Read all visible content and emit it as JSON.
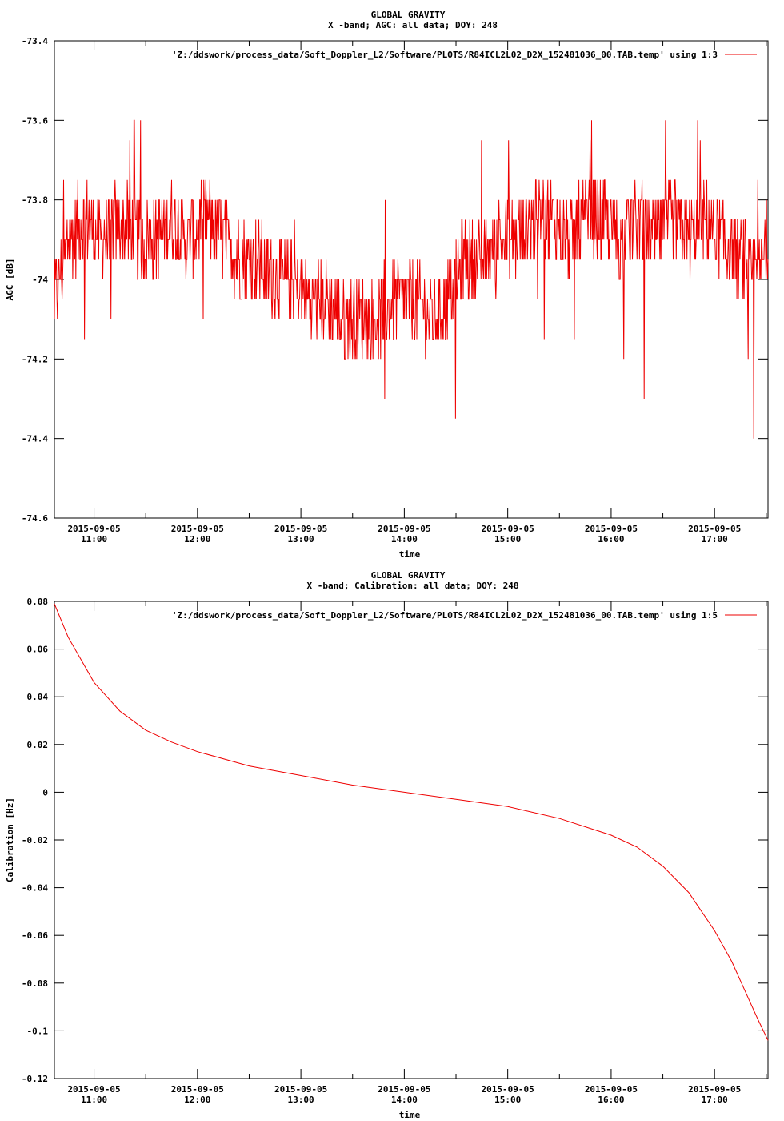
{
  "colors": {
    "series": "#ee0000",
    "axis": "#000000",
    "background": "#ffffff"
  },
  "chart_data": [
    {
      "type": "line",
      "title": "GLOBAL GRAVITY",
      "subtitle": "X -band; AGC: all data; DOY: 248",
      "xlabel": "time",
      "ylabel": "AGC [dB]",
      "xlim": [
        "2015-09-05 10:37",
        "2015-09-05 17:31"
      ],
      "ylim": [
        -74.6,
        -73.4
      ],
      "yticks": [
        -73.4,
        -73.6,
        -73.8,
        -74,
        -74.2,
        -74.4,
        -74.6
      ],
      "ytick_labels": [
        "-73.4",
        "-73.6",
        "-73.8",
        "-74",
        "-74.2",
        "-74.4",
        "-74.6"
      ],
      "xticks": [
        "2015-09-05 11:00",
        "2015-09-05 12:00",
        "2015-09-05 13:00",
        "2015-09-05 14:00",
        "2015-09-05 15:00",
        "2015-09-05 16:00",
        "2015-09-05 17:00"
      ],
      "xtick_labels": [
        [
          "2015-09-05",
          "11:00"
        ],
        [
          "2015-09-05",
          "12:00"
        ],
        [
          "2015-09-05",
          "13:00"
        ],
        [
          "2015-09-05",
          "14:00"
        ],
        [
          "2015-09-05",
          "15:00"
        ],
        [
          "2015-09-05",
          "16:00"
        ],
        [
          "2015-09-05",
          "17:00"
        ]
      ],
      "grid": false,
      "legend_position": "top-right",
      "series": [
        {
          "name": "'Z:/ddswork/process_data/Soft_Doppler_L2/Software/PLOTS/R84ICL2L02_D2X_152481036_00.TAB.temp' using 1:3",
          "x": [
            "2015-09-05 10:37",
            "2015-09-05 10:45",
            "2015-09-05 10:55",
            "2015-09-05 11:05",
            "2015-09-05 11:15",
            "2015-09-05 11:25",
            "2015-09-05 11:35",
            "2015-09-05 11:45",
            "2015-09-05 11:55",
            "2015-09-05 12:05",
            "2015-09-05 12:15",
            "2015-09-05 12:25",
            "2015-09-05 12:35",
            "2015-09-05 12:45",
            "2015-09-05 12:55",
            "2015-09-05 13:05",
            "2015-09-05 13:15",
            "2015-09-05 13:25",
            "2015-09-05 13:35",
            "2015-09-05 13:45",
            "2015-09-05 13:55",
            "2015-09-05 14:05",
            "2015-09-05 14:15",
            "2015-09-05 14:25",
            "2015-09-05 14:35",
            "2015-09-05 14:45",
            "2015-09-05 14:55",
            "2015-09-05 15:05",
            "2015-09-05 15:15",
            "2015-09-05 15:25",
            "2015-09-05 15:35",
            "2015-09-05 15:45",
            "2015-09-05 15:55",
            "2015-09-05 16:05",
            "2015-09-05 16:15",
            "2015-09-05 16:25",
            "2015-09-05 16:35",
            "2015-09-05 16:45",
            "2015-09-05 16:55",
            "2015-09-05 17:05",
            "2015-09-05 17:15",
            "2015-09-05 17:25",
            "2015-09-05 17:31"
          ],
          "y": [
            -74.05,
            -73.9,
            -73.85,
            -73.9,
            -73.85,
            -73.9,
            -73.9,
            -73.85,
            -73.9,
            -73.85,
            -73.9,
            -73.95,
            -73.95,
            -74.0,
            -74.0,
            -74.05,
            -74.05,
            -74.1,
            -74.1,
            -74.1,
            -74.05,
            -74.05,
            -74.1,
            -74.05,
            -73.95,
            -73.95,
            -73.9,
            -73.9,
            -73.85,
            -73.85,
            -73.9,
            -73.85,
            -73.85,
            -73.9,
            -73.85,
            -73.9,
            -73.85,
            -73.9,
            -73.85,
            -73.9,
            -73.95,
            -74.0,
            -73.9
          ]
        }
      ]
    },
    {
      "type": "line",
      "title": "GLOBAL GRAVITY",
      "subtitle": "X -band; Calibration: all data; DOY: 248",
      "xlabel": "time",
      "ylabel": "Calibration [Hz]",
      "xlim": [
        "2015-09-05 10:37",
        "2015-09-05 17:31"
      ],
      "ylim": [
        -0.12,
        0.08
      ],
      "yticks": [
        0.08,
        0.06,
        0.04,
        0.02,
        0,
        -0.02,
        -0.04,
        -0.06,
        -0.08,
        -0.1,
        -0.12
      ],
      "ytick_labels": [
        "0.08",
        "0.06",
        "0.04",
        "0.02",
        "0",
        "-0.02",
        "-0.04",
        "-0.06",
        "-0.08",
        "-0.1",
        "-0.12"
      ],
      "xticks": [
        "2015-09-05 11:00",
        "2015-09-05 12:00",
        "2015-09-05 13:00",
        "2015-09-05 14:00",
        "2015-09-05 15:00",
        "2015-09-05 16:00",
        "2015-09-05 17:00"
      ],
      "xtick_labels": [
        [
          "2015-09-05",
          "11:00"
        ],
        [
          "2015-09-05",
          "12:00"
        ],
        [
          "2015-09-05",
          "13:00"
        ],
        [
          "2015-09-05",
          "14:00"
        ],
        [
          "2015-09-05",
          "15:00"
        ],
        [
          "2015-09-05",
          "16:00"
        ],
        [
          "2015-09-05",
          "17:00"
        ]
      ],
      "grid": false,
      "legend_position": "top-right",
      "series": [
        {
          "name": "'Z:/ddswork/process_data/Soft_Doppler_L2/Software/PLOTS/R84ICL2L02_D2X_152481036_00.TAB.temp' using 1:5",
          "x": [
            "2015-09-05 10:37",
            "2015-09-05 10:45",
            "2015-09-05 11:00",
            "2015-09-05 11:15",
            "2015-09-05 11:30",
            "2015-09-05 11:45",
            "2015-09-05 12:00",
            "2015-09-05 12:30",
            "2015-09-05 13:00",
            "2015-09-05 13:30",
            "2015-09-05 14:00",
            "2015-09-05 14:30",
            "2015-09-05 15:00",
            "2015-09-05 15:30",
            "2015-09-05 16:00",
            "2015-09-05 16:15",
            "2015-09-05 16:30",
            "2015-09-05 16:45",
            "2015-09-05 17:00",
            "2015-09-05 17:10",
            "2015-09-05 17:20",
            "2015-09-05 17:25",
            "2015-09-05 17:31"
          ],
          "y": [
            0.079,
            0.065,
            0.046,
            0.034,
            0.026,
            0.021,
            0.017,
            0.011,
            0.007,
            0.003,
            0.0,
            -0.003,
            -0.006,
            -0.011,
            -0.018,
            -0.023,
            -0.031,
            -0.042,
            -0.058,
            -0.071,
            -0.087,
            -0.095,
            -0.104
          ]
        }
      ]
    }
  ]
}
